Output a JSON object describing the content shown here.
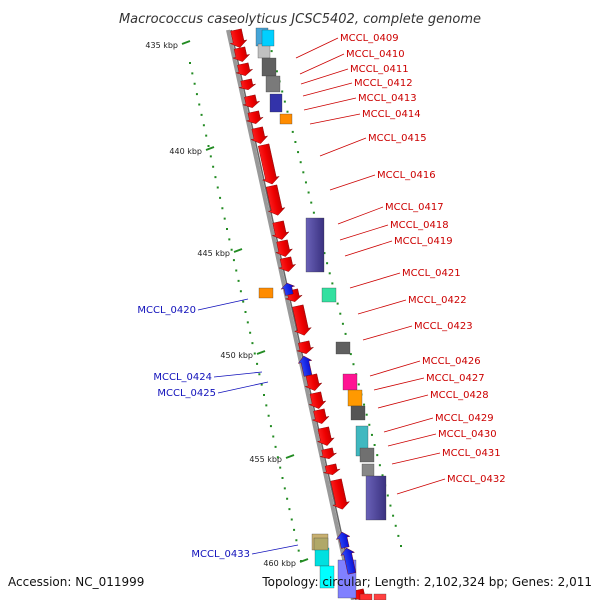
{
  "title": "Macrococcus caseolyticus JCSC5402, complete genome",
  "footer": {
    "accession": "Accession: NC_011999",
    "stats": "Topology: circular; Length: 2,102,324 bp; Genes: 2,011"
  },
  "ticks": [
    "435 kbp",
    "440 kbp",
    "445 kbp",
    "450 kbp",
    "455 kbp",
    "460 kbp"
  ],
  "colors": {
    "forward_label": "#cc0000",
    "reverse_label": "#1111bb",
    "tick": "#228b22",
    "backbone": "#888888"
  },
  "labels_right": [
    "MCCL_0409",
    "MCCL_0410",
    "MCCL_0411",
    "MCCL_0412",
    "MCCL_0413",
    "MCCL_0414",
    "MCCL_0415",
    "MCCL_0416",
    "MCCL_0417",
    "MCCL_0418",
    "MCCL_0419",
    "MCCL_0421",
    "MCCL_0422",
    "MCCL_0423",
    "MCCL_0426",
    "MCCL_0427",
    "MCCL_0428",
    "MCCL_0429",
    "MCCL_0430",
    "MCCL_0431",
    "MCCL_0432"
  ],
  "labels_left": [
    "MCCL_0420",
    "MCCL_0424",
    "MCCL_0425",
    "MCCL_0433"
  ]
}
